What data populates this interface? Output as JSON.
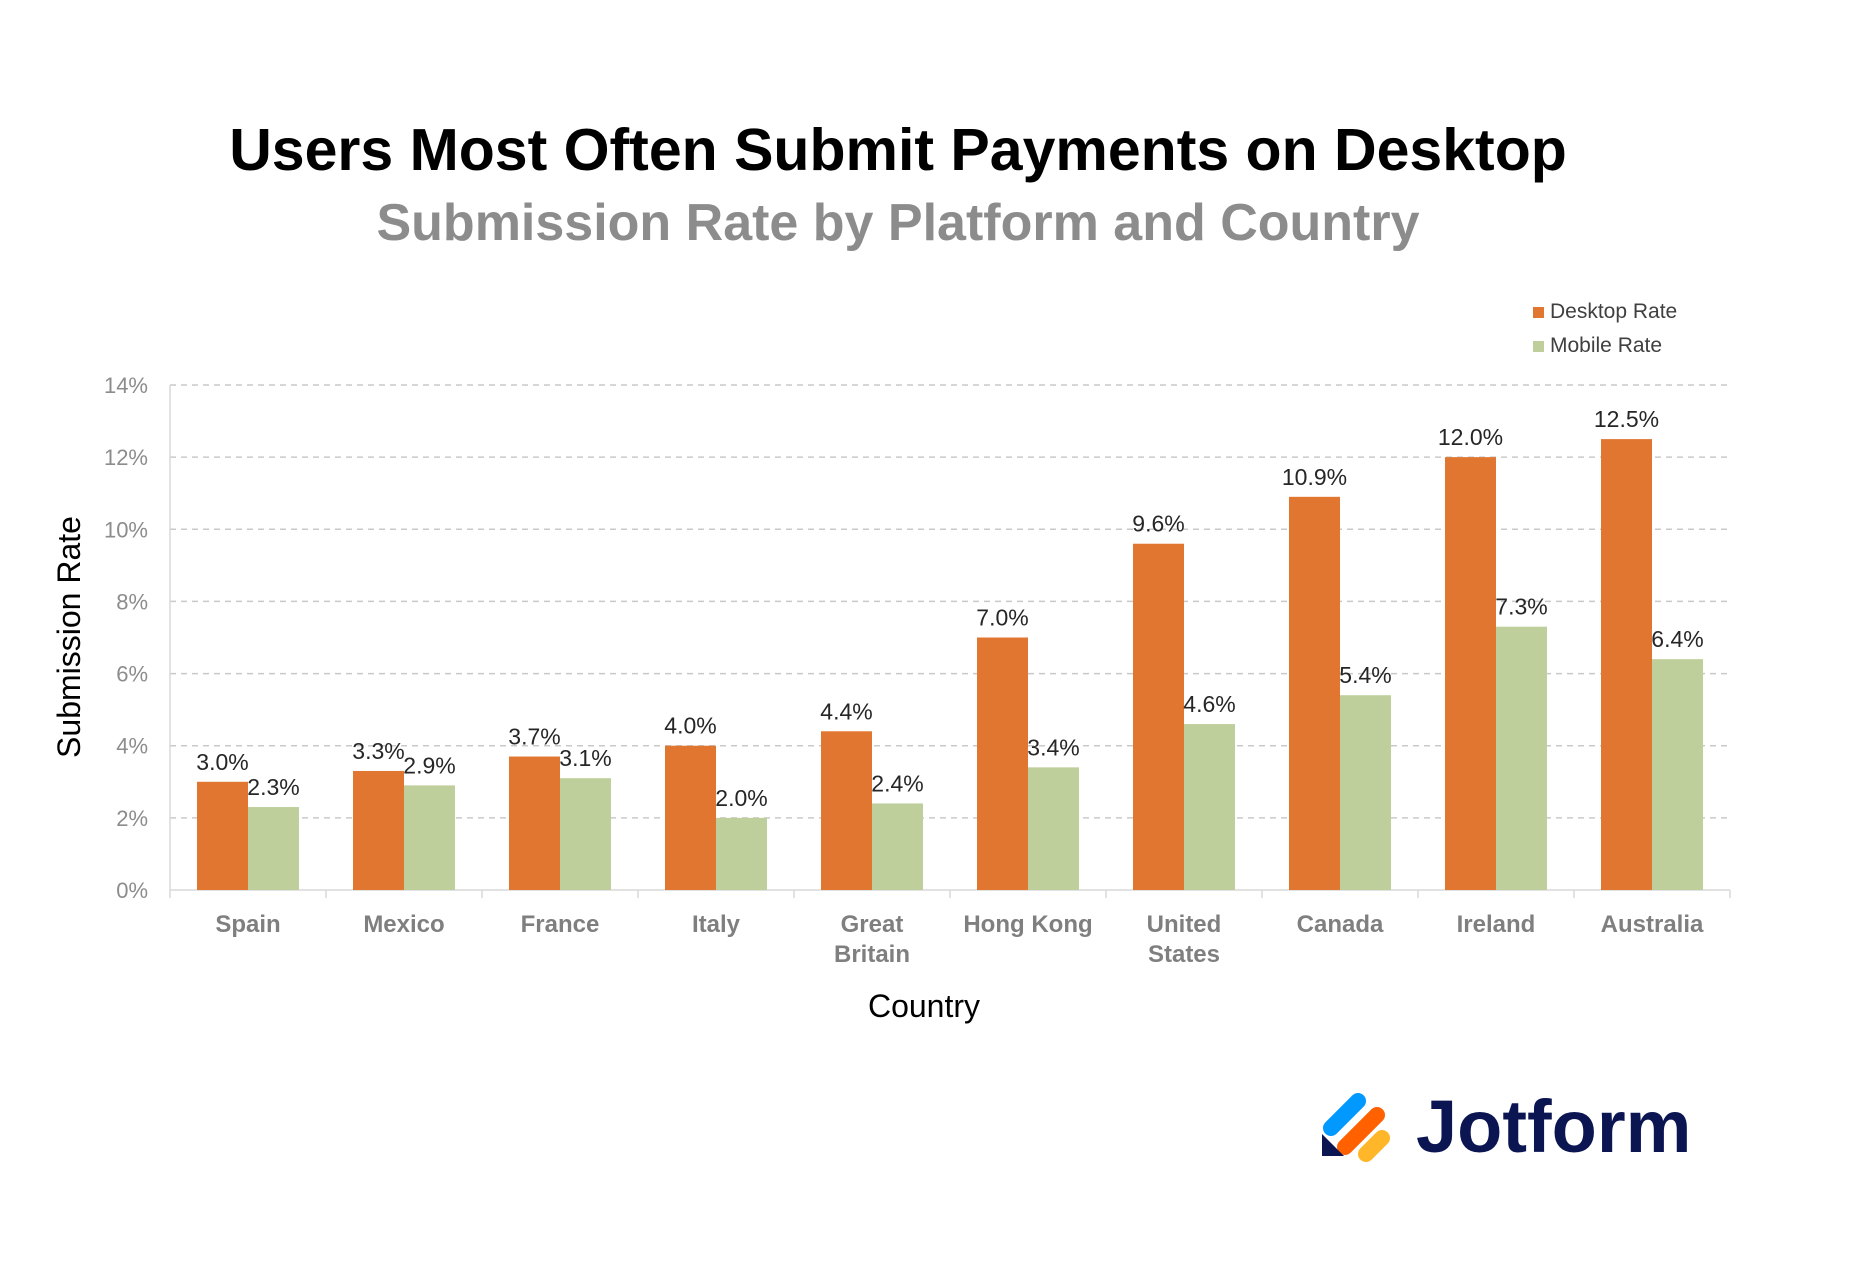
{
  "chart_data": {
    "type": "bar",
    "title": "Users Most Often Submit Payments on Desktop",
    "subtitle": "Submission Rate by Platform and Country",
    "xlabel": "Country",
    "ylabel": "Submission Rate",
    "categories": [
      [
        "Spain"
      ],
      [
        "Mexico"
      ],
      [
        "France"
      ],
      [
        "Italy"
      ],
      [
        "Great",
        "Britain"
      ],
      [
        "Hong Kong"
      ],
      [
        "United",
        "States"
      ],
      [
        "Canada"
      ],
      [
        "Ireland"
      ],
      [
        "Australia"
      ]
    ],
    "series": [
      {
        "name": "Desktop Rate",
        "color": "#e07630",
        "values": [
          3.0,
          3.3,
          3.7,
          4.0,
          4.4,
          7.0,
          9.6,
          10.9,
          12.0,
          12.5
        ],
        "labels": [
          "3.0%",
          "3.3%",
          "3.7%",
          "4.0%",
          "4.4%",
          "7.0%",
          "9.6%",
          "10.9%",
          "12.0%",
          "12.5%"
        ]
      },
      {
        "name": "Mobile Rate",
        "color": "#bfcf9c",
        "values": [
          2.3,
          2.9,
          3.1,
          2.0,
          2.4,
          3.4,
          4.6,
          5.4,
          7.3,
          6.4
        ],
        "labels": [
          "2.3%",
          "2.9%",
          "3.1%",
          "2.0%",
          "2.4%",
          "3.4%",
          "4.6%",
          "5.4%",
          "7.3%",
          "6.4%"
        ]
      }
    ],
    "ylim": [
      0,
      14
    ],
    "yticks": [
      0,
      2,
      4,
      6,
      8,
      10,
      12,
      14
    ],
    "ytick_labels": [
      "0%",
      "2%",
      "4%",
      "6%",
      "8%",
      "10%",
      "12%",
      "14%"
    ],
    "grid": "horizontal dashed",
    "legend_position": "top-right"
  },
  "brand": {
    "name": "Jotform",
    "logo_colors": [
      "#0099ff",
      "#ff6100",
      "#ffb629",
      "#0a1551"
    ]
  }
}
